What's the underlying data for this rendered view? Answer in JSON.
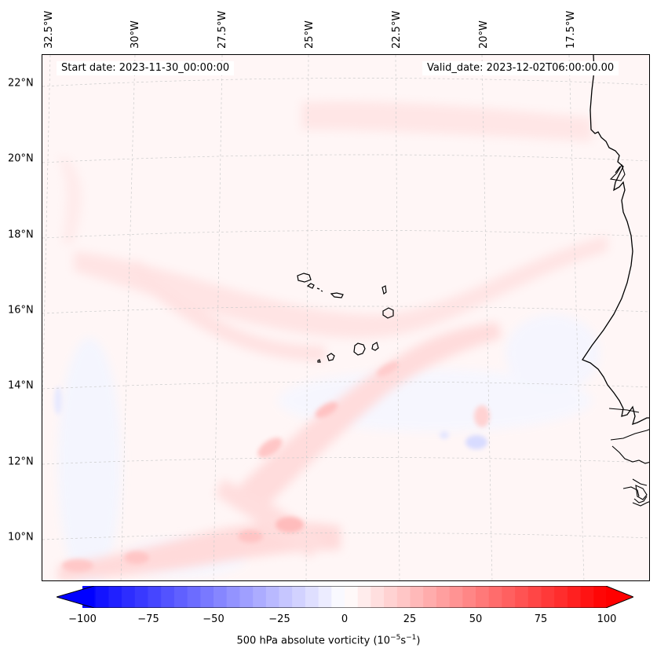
{
  "map": {
    "start_date": "Start date: 2023-11-30_00:00:00",
    "valid_date": "Valid_date: 2023-12-02T06:00:00.00",
    "longitude_labels": [
      "32.5°W",
      "30°W",
      "27.5°W",
      "25°W",
      "22.5°W",
      "20°W",
      "17.5°W"
    ],
    "latitude_labels": [
      "22°N",
      "20°N",
      "18°N",
      "16°N",
      "14°N",
      "12°N",
      "10°N"
    ],
    "extent": {
      "lon_min": -32.6,
      "lon_max": -15.0,
      "lat_min": 8.9,
      "lat_max": 22.8
    },
    "field": "500 hPa absolute vorticity",
    "colors": {
      "negative": "#0000ff",
      "neutral": "#ffffff",
      "positive": "#ff0000",
      "coast": "#000000",
      "grid": "#cccccc"
    }
  },
  "colorbar": {
    "label_main": "500 hPa absolute vorticity (10",
    "label_exp1": "−5",
    "label_mid": "s",
    "label_exp2": "−1",
    "label_end": ")",
    "ticks": [
      "−100",
      "−75",
      "−50",
      "−25",
      "0",
      "25",
      "50",
      "75",
      "100"
    ],
    "min": -100,
    "max": 100,
    "extend": "both"
  }
}
